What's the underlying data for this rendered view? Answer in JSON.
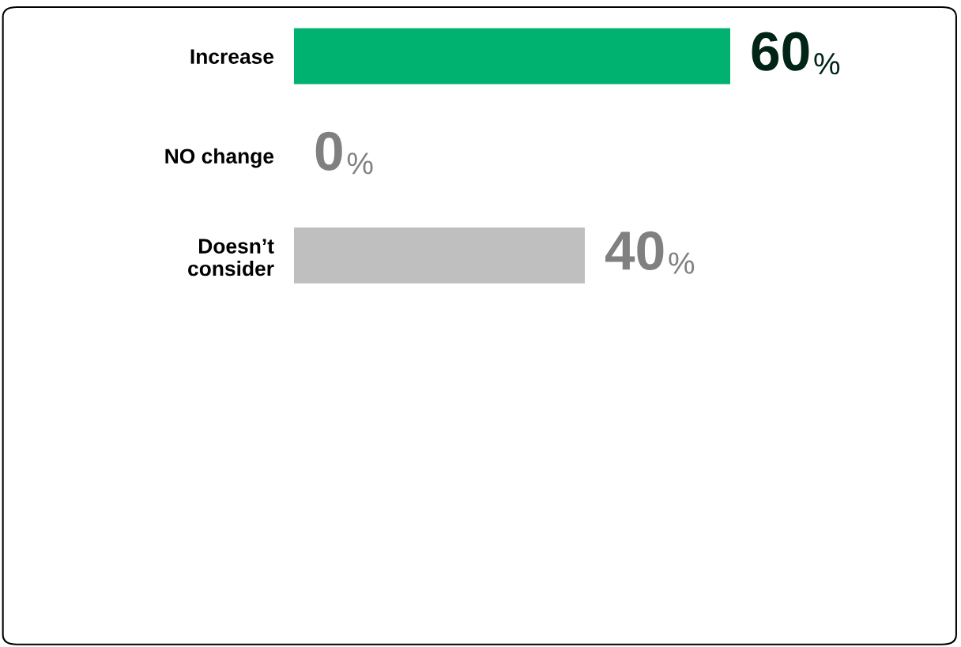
{
  "chart_data": {
    "type": "bar",
    "orientation": "horizontal",
    "categories": [
      "Increase",
      "NO change",
      "Doesn’t\nconsider"
    ],
    "values": [
      60,
      0,
      40
    ],
    "colors": [
      "#00b26f",
      "#bfbfbf",
      "#bfbfbf"
    ],
    "value_labels": [
      "60%",
      "0%",
      "40%"
    ],
    "tick_labels": "y",
    "grid": false,
    "legend": false
  }
}
